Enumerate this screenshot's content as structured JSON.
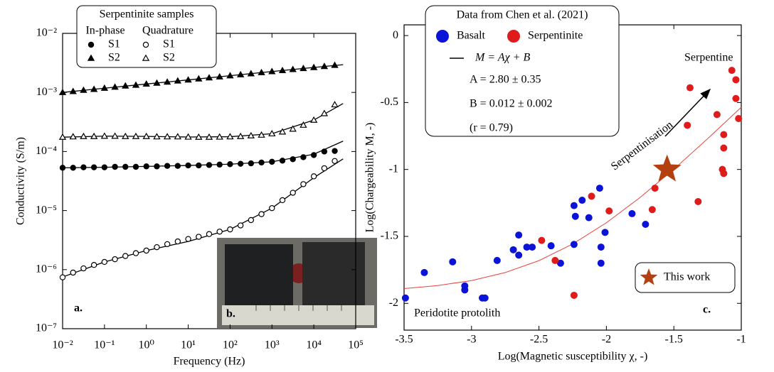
{
  "chart_data": [
    {
      "type": "scatter",
      "xscale": "log",
      "yscale": "log",
      "xlabel": "Frequency (Hz)",
      "ylabel": "Conductivity (S/m)",
      "annotation": "a.",
      "xlim": [
        0.01,
        100000
      ],
      "ylim": [
        1e-07,
        0.01
      ],
      "xticks": [
        {
          "value": 0.01,
          "label": "10⁻²"
        },
        {
          "value": 0.1,
          "label": "10⁻¹"
        },
        {
          "value": 1,
          "label": "10⁰"
        },
        {
          "value": 10,
          "label": "10¹"
        },
        {
          "value": 100,
          "label": "10²"
        },
        {
          "value": 1000,
          "label": "10³"
        },
        {
          "value": 10000,
          "label": "10⁴"
        },
        {
          "value": 100000,
          "label": "10⁵"
        }
      ],
      "yticks": [
        {
          "value": 1e-07,
          "label": "10⁻⁷"
        },
        {
          "value": 1e-06,
          "label": "10⁻⁶"
        },
        {
          "value": 1e-05,
          "label": "10⁻⁵"
        },
        {
          "value": 0.0001,
          "label": "10⁻⁴"
        },
        {
          "value": 0.001,
          "label": "10⁻³"
        },
        {
          "value": 0.01,
          "label": "10⁻²"
        }
      ],
      "legend_title": "Serpentinite samples",
      "legend_columns": [
        "In-phase",
        "Quadrature"
      ],
      "x": [
        0.01,
        0.0178,
        0.0316,
        0.0562,
        0.1,
        0.178,
        0.316,
        0.562,
        1,
        1.78,
        3.16,
        5.62,
        10,
        17.8,
        31.6,
        56.2,
        100,
        178,
        316,
        562,
        1000,
        1780,
        3160,
        5620,
        10000,
        17800,
        31600
      ],
      "series": [
        {
          "name": "S1",
          "marker": "circle",
          "filled": true,
          "color": "#000000",
          "values": [
            5.3e-05,
            5.3e-05,
            5.4e-05,
            5.4e-05,
            5.4e-05,
            5.5e-05,
            5.5e-05,
            5.5e-05,
            5.6e-05,
            5.6e-05,
            5.7e-05,
            5.7e-05,
            5.8e-05,
            5.8e-05,
            5.9e-05,
            6e-05,
            6.1e-05,
            6.2e-05,
            6.3e-05,
            6.5e-05,
            6.7e-05,
            7e-05,
            7.4e-05,
            8e-05,
            8.7e-05,
            0.0001,
            0.000102
          ]
        },
        {
          "name": "S2",
          "marker": "triangle",
          "filled": true,
          "color": "#000000",
          "values": [
            0.001,
            0.00104,
            0.00109,
            0.00113,
            0.00118,
            0.00123,
            0.00129,
            0.00133,
            0.00139,
            0.00144,
            0.0015,
            0.00157,
            0.00163,
            0.0017,
            0.00177,
            0.00184,
            0.00192,
            0.002,
            0.00208,
            0.00217,
            0.00226,
            0.00235,
            0.00245,
            0.00255,
            0.00265,
            0.00276,
            0.00288
          ]
        },
        {
          "name": "S1",
          "marker": "circle",
          "filled": false,
          "color": "#000000",
          "values": [
            7.4e-07,
            8.9e-07,
            1.05e-06,
            1.2e-06,
            1.35e-06,
            1.5e-06,
            1.7e-06,
            1.9e-06,
            2.1e-06,
            2.4e-06,
            2.7e-06,
            3e-06,
            3.3e-06,
            3.6e-06,
            4e-06,
            4.4e-06,
            4.8e-06,
            5.6e-06,
            6.9e-06,
            8.7e-06,
            1.1e-05,
            1.5e-05,
            2e-05,
            2.8e-05,
            3.8e-05,
            5.2e-05,
            6.9e-05
          ]
        },
        {
          "name": "S2",
          "marker": "triangle",
          "filled": false,
          "color": "#000000",
          "values": [
            0.000175,
            0.000178,
            0.00018,
            0.00018,
            0.000182,
            0.000182,
            0.00018,
            0.00018,
            0.00018,
            0.000178,
            0.000178,
            0.000178,
            0.000176,
            0.000175,
            0.000175,
            0.000176,
            0.000178,
            0.00018,
            0.000185,
            0.00019,
            0.0002,
            0.000215,
            0.00024,
            0.00028,
            0.00034,
            0.00044,
            0.00062
          ]
        }
      ],
      "fit_color": "#000000",
      "fit_x": [
        0.01,
        0.1,
        1,
        10,
        100,
        1000,
        10000,
        50000
      ],
      "fits": [
        {
          "values": [
            5.3e-05,
            5.4e-05,
            5.6e-05,
            5.8e-05,
            6.1e-05,
            6.7e-05,
            9e-05,
            0.00015
          ]
        },
        {
          "values": [
            0.001,
            0.00118,
            0.00139,
            0.00163,
            0.00192,
            0.00226,
            0.00265,
            0.00295
          ]
        },
        {
          "values": [
            7.5e-07,
            1.35e-06,
            2.1e-06,
            3e-06,
            4.8e-06,
            1.1e-05,
            3.6e-05,
            7.5e-05
          ]
        },
        {
          "values": [
            0.000175,
            0.000182,
            0.00018,
            0.000176,
            0.000178,
            0.0002,
            0.00034,
            0.00065
          ]
        }
      ]
    },
    {
      "type": "scatter",
      "xlabel": "Log(Magnetic susceptibility χ, -)",
      "ylabel": "Log(Chargeability M, -)",
      "xlim": [
        -3.5,
        -1
      ],
      "ylim": [
        -2.2,
        0.08
      ],
      "xticks": [
        -3.5,
        -3,
        -2.5,
        -2,
        -1.5,
        -1
      ],
      "yticks": [
        -2,
        -1.5,
        -1,
        -0.5,
        0
      ],
      "legend_title": "Data from Chen et al. (2021)",
      "legend_formula": "M = Aχ + B",
      "legend_lines": [
        "A = 2.80 ± 0.35",
        "B = 0.012 ± 0.002",
        "(r = 0.79)"
      ],
      "series": [
        {
          "name": "Basalt",
          "color": "#0b14d6",
          "x": [
            -3.49,
            -3.35,
            -3.14,
            -3.05,
            -3.05,
            -2.92,
            -2.9,
            -2.81,
            -2.69,
            -2.65,
            -2.65,
            -2.59,
            -2.55,
            -2.41,
            -2.34,
            -2.24,
            -2.24,
            -2.23,
            -2.18,
            -2.13,
            -2.05,
            -2.04,
            -2.04,
            -2.01,
            -1.81,
            -1.71
          ],
          "values": [
            -1.96,
            -1.77,
            -1.69,
            -1.87,
            -1.9,
            -1.96,
            -1.96,
            -1.68,
            -1.6,
            -1.49,
            -1.64,
            -1.58,
            -1.58,
            -1.57,
            -1.7,
            -1.56,
            -1.27,
            -1.35,
            -1.23,
            -1.36,
            -1.14,
            -1.58,
            -1.7,
            -1.47,
            -1.33,
            -1.41
          ]
        },
        {
          "name": "Serpentinite",
          "color": "#e01b1b",
          "x": [
            -2.48,
            -2.38,
            -2.24,
            -2.11,
            -1.98,
            -1.66,
            -1.64,
            -1.4,
            -1.38,
            -1.32,
            -1.18,
            -1.13,
            -1.13,
            -1.14,
            -1.13,
            -1.07,
            -1.04,
            -1.04,
            -1.02
          ],
          "values": [
            -1.53,
            -1.68,
            -1.94,
            -1.2,
            -1.31,
            -1.3,
            -1.14,
            -0.67,
            -0.39,
            -1.24,
            -0.59,
            -0.74,
            -0.84,
            -1.0,
            -1.03,
            -0.26,
            -0.47,
            -0.33,
            -0.62
          ]
        }
      ],
      "fit": {
        "color": "#e8433a",
        "x": [
          -3.5,
          -3.25,
          -3,
          -2.75,
          -2.5,
          -2.25,
          -2,
          -1.75,
          -1.5,
          -1.25,
          -1
        ],
        "values": [
          -1.89,
          -1.867,
          -1.83,
          -1.77,
          -1.681,
          -1.557,
          -1.398,
          -1.209,
          -0.998,
          -0.771,
          -0.535
        ]
      },
      "this_work": {
        "name": "This work",
        "x": -1.55,
        "y": -1.0,
        "color": "#b5400f"
      },
      "annotations": [
        "Serpentine",
        "Peridotite protolith",
        "Serpentinisation",
        "c."
      ]
    }
  ],
  "photo_label": "b."
}
